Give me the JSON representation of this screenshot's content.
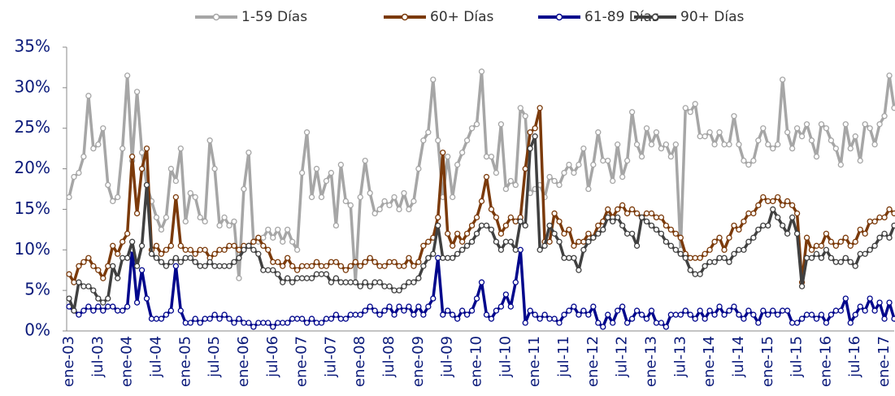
{
  "chart_data": {
    "type": "line",
    "categories": [
      "ene-03",
      null,
      null,
      null,
      null,
      null,
      "jul-03",
      null,
      null,
      null,
      null,
      null,
      "ene-04",
      null,
      null,
      null,
      null,
      null,
      "jul-04",
      null,
      null,
      null,
      null,
      null,
      "ene-05",
      null,
      null,
      null,
      null,
      null,
      "jul-05",
      null,
      null,
      null,
      null,
      null,
      "ene-06",
      null,
      null,
      null,
      null,
      null,
      "jul-06",
      null,
      null,
      null,
      null,
      null,
      "ene-07",
      null,
      null,
      null,
      null,
      null,
      "jul-07",
      null,
      null,
      null,
      null,
      null,
      "ene-08",
      null,
      null,
      null,
      null,
      null,
      "jul-08",
      null,
      null,
      null,
      null,
      null,
      "ene-09",
      null,
      null,
      null,
      null,
      null,
      "jul-09",
      null,
      null,
      null,
      null,
      null,
      "ene-10",
      null,
      null,
      null,
      null,
      null,
      "jul-10",
      null,
      null,
      null,
      null,
      null,
      "ene-11",
      null,
      null,
      null,
      null,
      null,
      "jul-11",
      null,
      null,
      null,
      null,
      null,
      "ene-12",
      null,
      null,
      null,
      null,
      null,
      "jul-12",
      null,
      null,
      null,
      null,
      null,
      "ene-13",
      null,
      null,
      null,
      null,
      null,
      "jul-13",
      null,
      null,
      null,
      null,
      null,
      "ene-14",
      null,
      null,
      null,
      null,
      null,
      "jul-14",
      null,
      null,
      null,
      null,
      null,
      "ene-15",
      null,
      null,
      null,
      null,
      null,
      "jul-15",
      null,
      null,
      null,
      null,
      null,
      "ene-16",
      null,
      null,
      null,
      null,
      null,
      "jul-16",
      null,
      null,
      null,
      null,
      null,
      "ene-17",
      null,
      null
    ],
    "series": [
      {
        "name": "1-59 Días",
        "color": "#a6a6a6",
        "values": [
          16.5,
          19,
          19.5,
          21.5,
          29,
          22.5,
          23,
          25,
          18,
          16,
          16.5,
          22.5,
          31.5,
          21,
          29.5,
          22,
          18,
          16,
          14,
          12.5,
          14,
          20,
          18.5,
          22.5,
          13.5,
          17,
          16.5,
          14,
          13.5,
          23.5,
          20,
          13,
          14,
          13,
          13.5,
          6.5,
          17.5,
          22,
          11,
          11,
          11.5,
          12.5,
          11.5,
          12.5,
          11,
          12.5,
          11,
          10,
          19.5,
          24.5,
          16.5,
          20,
          16.5,
          18.5,
          19.5,
          13,
          20.5,
          16,
          15.5,
          6,
          16.5,
          21,
          17,
          14.5,
          15,
          16,
          15.5,
          16.5,
          15,
          17,
          15,
          16,
          20,
          23.5,
          24.5,
          31,
          23.5,
          16.5,
          21.5,
          16.5,
          20.5,
          22,
          23.5,
          25,
          25.5,
          32,
          21.5,
          21.5,
          19.5,
          25.5,
          17.5,
          18.5,
          18,
          27.5,
          26.5,
          17,
          17.5,
          18,
          16.5,
          19,
          18.5,
          18,
          19.5,
          20.5,
          19.5,
          20.5,
          22.5,
          17.5,
          20.5,
          24.5,
          21,
          21,
          18.5,
          23,
          19,
          21,
          27,
          23,
          21.5,
          25,
          23,
          24.5,
          22.5,
          23,
          21.5,
          23,
          10,
          27.5,
          27,
          28,
          24,
          24,
          24.5,
          23,
          24.5,
          23,
          23,
          26.5,
          23,
          21,
          20.5,
          21,
          23.5,
          25,
          23,
          22.5,
          23,
          31,
          24.5,
          22.5,
          25,
          24,
          25.5,
          23.5,
          21.5,
          25.5,
          25,
          23.5,
          22.5,
          20.5,
          25.5,
          22.5,
          24,
          21,
          25.5,
          25,
          23,
          25.5,
          26.5,
          31.5,
          27.5
        ]
      },
      {
        "name": "60+ Días",
        "color": "#7b3a0a",
        "values": [
          7,
          6,
          8,
          8.5,
          9,
          8,
          7.5,
          6.5,
          8,
          10.5,
          9.5,
          11,
          12,
          21.5,
          14.5,
          20,
          22.5,
          10,
          10.5,
          9.5,
          10,
          10.5,
          16.5,
          10.5,
          10,
          10,
          9.5,
          10,
          10,
          9,
          9.5,
          10,
          10,
          10.5,
          10.5,
          10,
          10.5,
          10.5,
          11,
          11.5,
          10.5,
          10,
          8.5,
          8.5,
          8,
          9,
          8,
          7.5,
          8,
          8,
          8,
          8.5,
          8,
          8,
          8.5,
          8.5,
          8,
          7.5,
          8,
          8.5,
          8,
          8.5,
          9,
          8.5,
          8,
          8,
          8.5,
          8.5,
          8,
          8,
          9,
          8,
          8.5,
          10.5,
          11,
          11.5,
          14,
          22,
          12,
          10.5,
          12,
          11,
          12,
          13,
          14,
          16,
          19,
          15,
          14,
          12,
          13,
          14,
          13.5,
          14,
          20,
          24.5,
          25,
          27.5,
          11,
          11,
          14.5,
          13.5,
          12,
          12.5,
          10.5,
          11,
          11,
          12,
          11.5,
          13,
          13.5,
          15,
          14,
          15,
          15.5,
          14.5,
          15,
          14.5,
          14,
          14.5,
          14.5,
          14,
          14,
          13,
          12.5,
          12,
          11.5,
          9.5,
          9,
          9,
          9,
          9.5,
          10,
          11,
          11.5,
          10,
          11.5,
          13,
          12.5,
          13.5,
          14.5,
          14.5,
          15.5,
          16.5,
          16,
          16,
          16.5,
          15.5,
          16,
          15.5,
          14.5,
          6,
          11.5,
          10,
          10.5,
          10.5,
          12,
          11,
          10.5,
          11,
          11.5,
          10.5,
          11,
          12.5,
          12,
          13.5,
          13.5,
          14,
          14,
          15,
          14.5
        ]
      },
      {
        "name": "61-89 Días",
        "color": "#00068c",
        "values": [
          3,
          2.5,
          2,
          2.5,
          3,
          2.5,
          3,
          2.5,
          3,
          3,
          2.5,
          2.5,
          3,
          10,
          3.5,
          7.5,
          4,
          1.5,
          1.5,
          1.5,
          2,
          2.5,
          8,
          2.5,
          1,
          1,
          1.5,
          1,
          1.5,
          1.5,
          2,
          1.5,
          2,
          1.5,
          1,
          1.5,
          1,
          1,
          0.5,
          1,
          1,
          1,
          0.5,
          1,
          1,
          1,
          1.5,
          1.5,
          1.5,
          1,
          1.5,
          1,
          1,
          1.5,
          1.5,
          2,
          1.5,
          1.5,
          2,
          2,
          2,
          2.5,
          3,
          2.5,
          2,
          2.5,
          3,
          2,
          3,
          2.5,
          3,
          2,
          3,
          2,
          3,
          4,
          9,
          2,
          2.5,
          2,
          1.5,
          2.5,
          2,
          2.5,
          4,
          6,
          2,
          1.5,
          2.5,
          3,
          4.5,
          3,
          6,
          10,
          1,
          2.5,
          2,
          1.5,
          2,
          1.5,
          1.5,
          1,
          2,
          2.5,
          3,
          2,
          2.5,
          2,
          3,
          1,
          0.5,
          2,
          1,
          2.5,
          3,
          1,
          1.5,
          2.5,
          2,
          1.5,
          2.5,
          1,
          1,
          0.5,
          2,
          2,
          2,
          2.5,
          2,
          1.5,
          2.5,
          1.5,
          2.5,
          2,
          3,
          2,
          2.5,
          3,
          2,
          1.5,
          2.5,
          2,
          1,
          2.5,
          2,
          2.5,
          2,
          2.5,
          2.5,
          1,
          1,
          1.5,
          2,
          2,
          1.5,
          2,
          1,
          2,
          2.5,
          2.5,
          4,
          1,
          2,
          3,
          2.5,
          4,
          2.5,
          3.5,
          1.5,
          3.5,
          1.5
        ]
      },
      {
        "name": "90+ Días",
        "color": "#404040",
        "values": [
          4,
          2.5,
          6,
          5.5,
          5.5,
          5,
          4,
          3.5,
          4,
          8,
          6.5,
          9,
          9,
          11,
          8,
          10.5,
          18,
          9.5,
          9,
          8.5,
          8,
          8.5,
          9,
          8.5,
          9,
          9,
          8.5,
          8,
          8,
          8.5,
          8,
          8,
          8,
          8,
          8.5,
          9,
          10,
          10.5,
          10,
          9.5,
          7.5,
          7.5,
          7.5,
          7,
          6,
          6.5,
          6,
          6.5,
          6.5,
          6.5,
          6.5,
          7,
          7,
          7,
          6,
          6.5,
          6,
          6,
          6,
          6,
          5.5,
          6,
          5.5,
          6,
          6,
          5.5,
          5.5,
          5,
          5,
          5.5,
          6,
          6,
          6.5,
          8,
          9,
          9.5,
          13,
          9,
          9,
          9,
          9.5,
          10,
          10.5,
          11,
          12,
          13,
          13,
          12.5,
          11,
          10,
          11,
          11,
          10,
          13.5,
          13,
          22.5,
          24,
          10,
          10.5,
          13,
          12,
          11,
          9,
          9,
          9,
          7.5,
          10,
          11,
          11.5,
          12,
          12.5,
          14,
          13.5,
          14,
          13,
          12,
          12,
          10.5,
          14,
          13.5,
          13,
          12.5,
          12,
          11,
          10.5,
          10,
          9.5,
          9,
          7.5,
          7,
          7,
          8,
          8.5,
          8.5,
          9,
          9,
          8.5,
          9.5,
          10,
          10,
          11,
          11.5,
          12.5,
          13,
          13,
          15,
          14,
          13,
          12,
          14,
          12,
          5.5,
          9,
          9,
          9.5,
          9,
          10,
          9,
          8.5,
          8.5,
          9,
          8.5,
          8,
          9.5,
          9.5,
          10,
          10.5,
          11.5,
          12,
          11.5,
          13
        ]
      }
    ],
    "ylim": [
      0,
      35
    ],
    "yticks": [
      {
        "value": 0,
        "label": "0%"
      },
      {
        "value": 5,
        "label": "5%"
      },
      {
        "value": 10,
        "label": "10%"
      },
      {
        "value": 15,
        "label": "15%"
      },
      {
        "value": 20,
        "label": "20%"
      },
      {
        "value": 25,
        "label": "25%"
      },
      {
        "value": 30,
        "label": "30%"
      },
      {
        "value": 35,
        "label": "35%"
      }
    ],
    "legend": "top",
    "grid": false
  }
}
